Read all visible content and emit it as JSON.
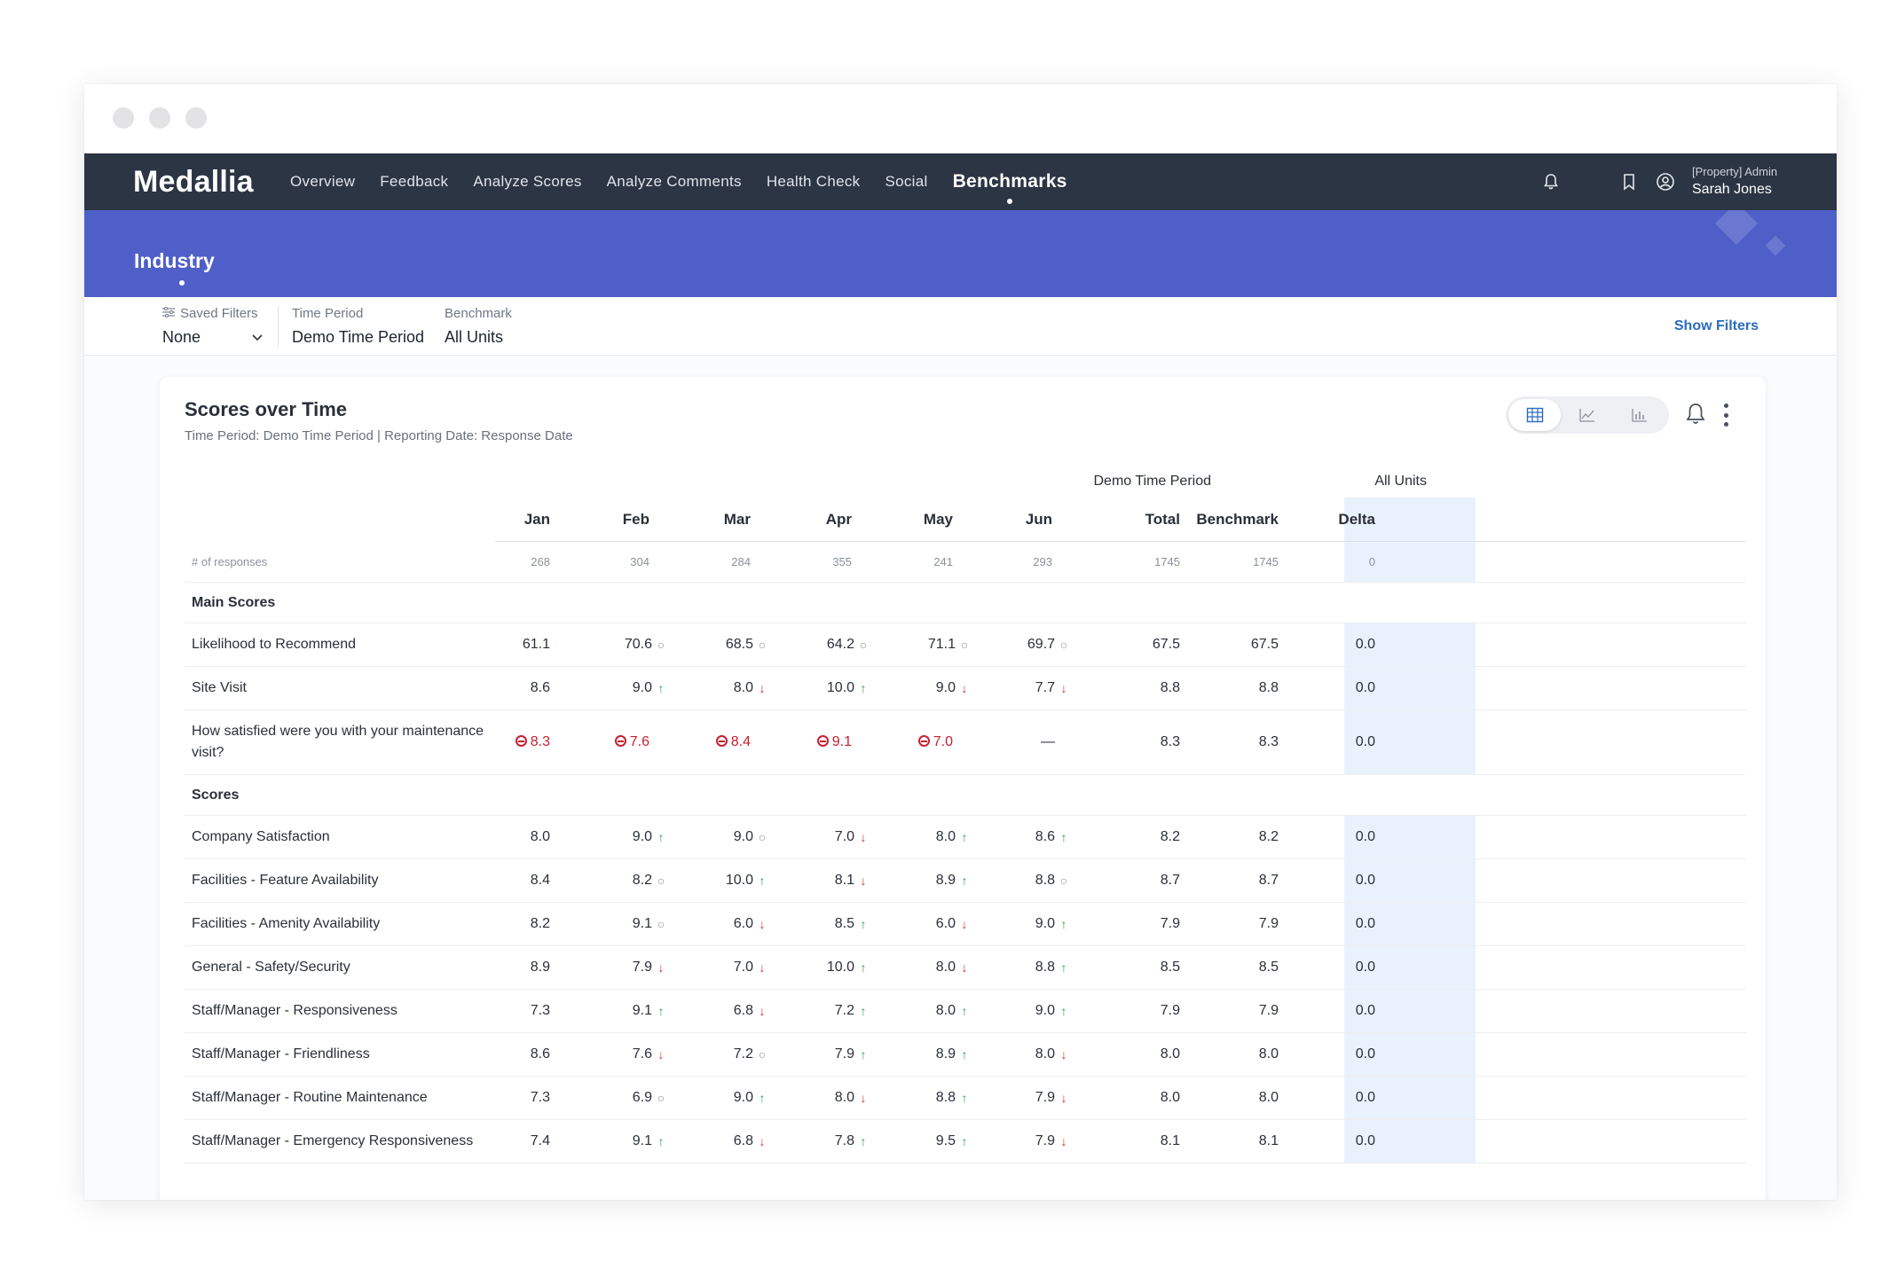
{
  "app": {
    "logo": "Medallia",
    "nav": [
      "Overview",
      "Feedback",
      "Analyze Scores",
      "Analyze Comments",
      "Health Check",
      "Social",
      "Benchmarks"
    ],
    "active_nav": "Benchmarks",
    "user_role": "[Property] Admin",
    "user_name": "Sarah Jones"
  },
  "banner": {
    "title": "Industry"
  },
  "filters": {
    "saved_filters_label": "Saved Filters",
    "saved_filters_value": "None",
    "time_period_label": "Time Period",
    "time_period_value": "Demo Time Period",
    "benchmark_label": "Benchmark",
    "benchmark_value": "All Units",
    "show_filters": "Show Filters"
  },
  "card": {
    "title": "Scores over Time",
    "subtitle": "Time Period: Demo Time Period | Reporting Date: Response Date"
  },
  "table": {
    "group_headers": {
      "period": "Demo Time Period",
      "benchmark": "All Units"
    },
    "columns": [
      "Jan",
      "Feb",
      "Mar",
      "Apr",
      "May",
      "Jun",
      "Total",
      "Benchmark",
      "Delta"
    ],
    "responses_label": "# of responses",
    "responses": [
      "268",
      "304",
      "284",
      "355",
      "241",
      "293",
      "1745",
      "1745",
      "0"
    ],
    "sections": [
      {
        "title": "Main Scores",
        "rows": [
          {
            "label": "Likelihood to Recommend",
            "values": [
              [
                "61.1",
                ""
              ],
              [
                "70.6",
                "o"
              ],
              [
                "68.5",
                "o"
              ],
              [
                "64.2",
                "o"
              ],
              [
                "71.1",
                "o"
              ],
              [
                "69.7",
                "o"
              ]
            ],
            "total": "67.5",
            "benchmark": "67.5",
            "delta": "0.0"
          },
          {
            "label": "Site Visit",
            "values": [
              [
                "8.6",
                ""
              ],
              [
                "9.0",
                "up"
              ],
              [
                "8.0",
                "down"
              ],
              [
                "10.0",
                "up"
              ],
              [
                "9.0",
                "down"
              ],
              [
                "7.7",
                "down"
              ]
            ],
            "total": "8.8",
            "benchmark": "8.8",
            "delta": "0.0"
          },
          {
            "label": "How satisfied were you with your maintenance visit?",
            "values": [
              [
                "8.3",
                "red"
              ],
              [
                "7.6",
                "red"
              ],
              [
                "8.4",
                "red"
              ],
              [
                "9.1",
                "red"
              ],
              [
                "7.0",
                "red"
              ],
              [
                "—",
                ""
              ]
            ],
            "total": "8.3",
            "benchmark": "8.3",
            "delta": "0.0",
            "tall": true
          }
        ]
      },
      {
        "title": "Scores",
        "rows": [
          {
            "label": "Company Satisfaction",
            "values": [
              [
                "8.0",
                ""
              ],
              [
                "9.0",
                "up"
              ],
              [
                "9.0",
                "o"
              ],
              [
                "7.0",
                "down"
              ],
              [
                "8.0",
                "up"
              ],
              [
                "8.6",
                "up"
              ]
            ],
            "total": "8.2",
            "benchmark": "8.2",
            "delta": "0.0"
          },
          {
            "label": "Facilities - Feature Availability",
            "values": [
              [
                "8.4",
                ""
              ],
              [
                "8.2",
                "o"
              ],
              [
                "10.0",
                "up"
              ],
              [
                "8.1",
                "down"
              ],
              [
                "8.9",
                "up"
              ],
              [
                "8.8",
                "o"
              ]
            ],
            "total": "8.7",
            "benchmark": "8.7",
            "delta": "0.0"
          },
          {
            "label": "Facilities - Amenity Availability",
            "values": [
              [
                "8.2",
                ""
              ],
              [
                "9.1",
                "o"
              ],
              [
                "6.0",
                "down"
              ],
              [
                "8.5",
                "up"
              ],
              [
                "6.0",
                "down"
              ],
              [
                "9.0",
                "up"
              ]
            ],
            "total": "7.9",
            "benchmark": "7.9",
            "delta": "0.0"
          },
          {
            "label": "General - Safety/Security",
            "values": [
              [
                "8.9",
                ""
              ],
              [
                "7.9",
                "down"
              ],
              [
                "7.0",
                "down"
              ],
              [
                "10.0",
                "up"
              ],
              [
                "8.0",
                "down"
              ],
              [
                "8.8",
                "up"
              ]
            ],
            "total": "8.5",
            "benchmark": "8.5",
            "delta": "0.0"
          },
          {
            "label": "Staff/Manager - Responsiveness",
            "values": [
              [
                "7.3",
                ""
              ],
              [
                "9.1",
                "up"
              ],
              [
                "6.8",
                "down"
              ],
              [
                "7.2",
                "up"
              ],
              [
                "8.0",
                "up"
              ],
              [
                "9.0",
                "up"
              ]
            ],
            "total": "7.9",
            "benchmark": "7.9",
            "delta": "0.0"
          },
          {
            "label": "Staff/Manager - Friendliness",
            "values": [
              [
                "8.6",
                ""
              ],
              [
                "7.6",
                "down"
              ],
              [
                "7.2",
                "o"
              ],
              [
                "7.9",
                "up"
              ],
              [
                "8.9",
                "up"
              ],
              [
                "8.0",
                "down"
              ]
            ],
            "total": "8.0",
            "benchmark": "8.0",
            "delta": "0.0"
          },
          {
            "label": "Staff/Manager - Routine Maintenance",
            "values": [
              [
                "7.3",
                ""
              ],
              [
                "6.9",
                "o"
              ],
              [
                "9.0",
                "up"
              ],
              [
                "8.0",
                "down"
              ],
              [
                "8.8",
                "up"
              ],
              [
                "7.9",
                "down"
              ]
            ],
            "total": "8.0",
            "benchmark": "8.0",
            "delta": "0.0"
          },
          {
            "label": "Staff/Manager - Emergency Responsiveness",
            "values": [
              [
                "7.4",
                ""
              ],
              [
                "9.1",
                "up"
              ],
              [
                "6.8",
                "down"
              ],
              [
                "7.8",
                "up"
              ],
              [
                "9.5",
                "up"
              ],
              [
                "7.9",
                "down"
              ]
            ],
            "total": "8.1",
            "benchmark": "8.1",
            "delta": "0.0"
          }
        ]
      }
    ]
  },
  "icons": {
    "notification": "bell-icon",
    "bookmark": "bookmark-icon",
    "user": "user-circle-icon",
    "table_view": "table-icon",
    "line_view": "line-chart-icon",
    "bar_view": "bar-chart-icon",
    "alert": "bell-icon",
    "more": "more-vertical-icon"
  },
  "colors": {
    "nav_bg": "#2c3544",
    "banner_bg": "#4f5fc8",
    "total_col_bg": "#e9f1fc",
    "up": "#27a355",
    "down": "#d0322e",
    "link": "#2a6bc0"
  }
}
